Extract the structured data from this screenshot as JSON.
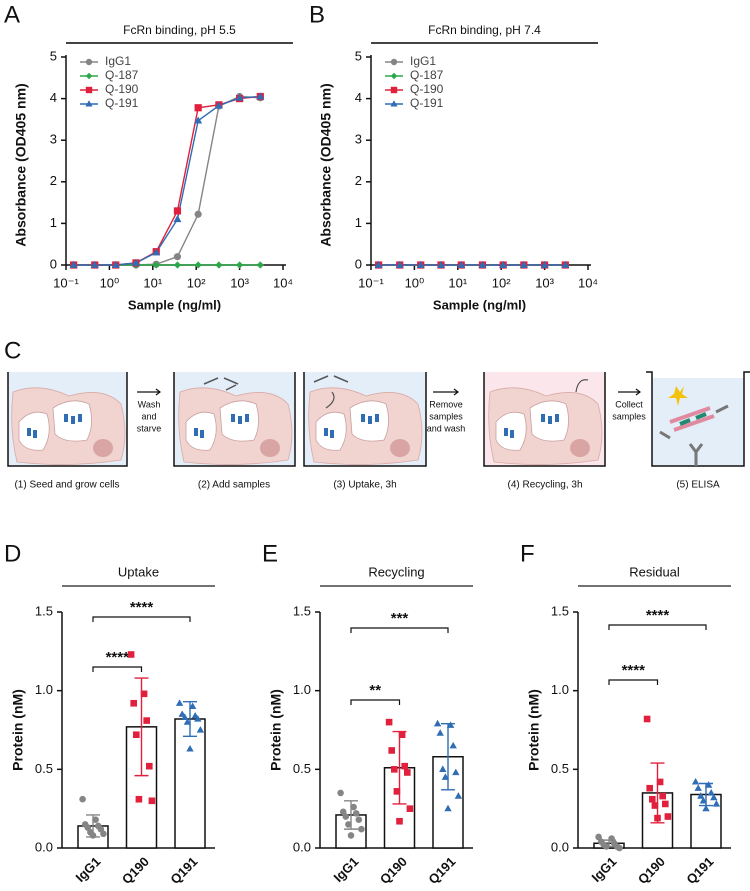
{
  "chart_data": [
    {
      "type": "line",
      "panel": "A",
      "title": "FcRn binding, pH 5.5",
      "xlabel": "Sample (ng/ml)",
      "ylabel": "Absorbance (OD405 nm)",
      "log_x": true,
      "xlim": [
        0.1,
        10000
      ],
      "xticks": [
        {
          "value": 0.1,
          "label": "10⁻¹"
        },
        {
          "value": 1,
          "label": "10⁰"
        },
        {
          "value": 10,
          "label": "10¹"
        },
        {
          "value": 100,
          "label": "10²"
        },
        {
          "value": 1000,
          "label": "10³"
        },
        {
          "value": 10000,
          "label": "10⁴"
        }
      ],
      "ylim": [
        0,
        5
      ],
      "yticks": [
        0,
        1,
        2,
        3,
        4,
        5
      ],
      "legend": "upper left",
      "x": [
        0.15,
        0.46,
        1.4,
        4.1,
        12,
        37,
        111,
        333,
        1000,
        3000
      ],
      "series": [
        {
          "name": "IgG1",
          "color": "#858585",
          "marker": "circle",
          "values": [
            0,
            0,
            0,
            0,
            0.02,
            0.2,
            1.22,
            3.82,
            4.05,
            4.02
          ]
        },
        {
          "name": "Q-187",
          "color": "#2ca84a",
          "marker": "diamond",
          "values": [
            0,
            0,
            0,
            0,
            0,
            0,
            0,
            0,
            0,
            0
          ]
        },
        {
          "name": "Q-190",
          "color": "#e0203c",
          "marker": "square",
          "values": [
            0,
            0,
            0,
            0.05,
            0.32,
            1.3,
            3.78,
            3.85,
            4.0,
            4.05
          ]
        },
        {
          "name": "Q-191",
          "color": "#2f6db5",
          "marker": "triangle",
          "values": [
            0,
            0,
            0,
            0.05,
            0.3,
            1.1,
            3.47,
            3.83,
            4.02,
            4.05
          ]
        }
      ]
    },
    {
      "type": "line",
      "panel": "B",
      "title": "FcRn binding, pH 7.4",
      "xlabel": "Sample (ng/ml)",
      "ylabel": "Absorbance (OD405 nm)",
      "log_x": true,
      "xlim": [
        0.1,
        10000
      ],
      "xticks": [
        {
          "value": 0.1,
          "label": "10⁻¹"
        },
        {
          "value": 1,
          "label": "10⁰"
        },
        {
          "value": 10,
          "label": "10¹"
        },
        {
          "value": 100,
          "label": "10²"
        },
        {
          "value": 1000,
          "label": "10³"
        },
        {
          "value": 10000,
          "label": "10⁴"
        }
      ],
      "ylim": [
        0,
        5
      ],
      "yticks": [
        0,
        1,
        2,
        3,
        4,
        5
      ],
      "legend": "upper left",
      "x": [
        0.15,
        0.46,
        1.4,
        4.1,
        12,
        37,
        111,
        333,
        1000,
        3000
      ],
      "series": [
        {
          "name": "IgG1",
          "color": "#858585",
          "marker": "circle",
          "values": [
            0,
            0,
            0,
            0,
            0,
            0,
            0,
            0,
            0,
            0
          ]
        },
        {
          "name": "Q-187",
          "color": "#2ca84a",
          "marker": "diamond",
          "values": [
            0,
            0,
            0,
            0,
            0,
            0,
            0,
            0,
            0,
            0
          ]
        },
        {
          "name": "Q-190",
          "color": "#e0203c",
          "marker": "square",
          "values": [
            0,
            0,
            0,
            0,
            0,
            0,
            0,
            0,
            0,
            0
          ]
        },
        {
          "name": "Q-191",
          "color": "#2f6db5",
          "marker": "triangle",
          "values": [
            0,
            0,
            0,
            0,
            0,
            0,
            0,
            0,
            0,
            0
          ]
        }
      ]
    },
    {
      "type": "bar",
      "panel": "D",
      "title": "Uptake",
      "ylabel": "Protein (nM)",
      "ylim": [
        0,
        1.5
      ],
      "yticks": [
        {
          "value": 0,
          "label": "0.0"
        },
        0.5,
        {
          "value": 1,
          "label": "1.0"
        },
        1.5
      ],
      "categories": [
        "IgG1",
        "Q190",
        "Q191"
      ],
      "colors": [
        "#858585",
        "#e0203c",
        "#2f6db5"
      ],
      "markers": [
        "circle",
        "square",
        "triangle"
      ],
      "values": [
        0.14,
        0.77,
        0.82
      ],
      "errors": [
        0.07,
        0.31,
        0.11
      ],
      "points": [
        [
          0.31,
          0.18,
          0.15,
          0.14,
          0.13,
          0.12,
          0.1,
          0.09,
          0.08
        ],
        [
          1.23,
          0.98,
          0.92,
          0.81,
          0.72,
          0.52,
          0.31,
          0.3
        ],
        [
          0.92,
          0.9,
          0.85,
          0.84,
          0.83,
          0.82,
          0.8,
          0.75,
          0.63
        ]
      ],
      "comparisons": [
        {
          "pair": [
            "IgG1",
            "Q190"
          ],
          "label": "****"
        },
        {
          "pair": [
            "IgG1",
            "Q191"
          ],
          "label": "****"
        }
      ]
    },
    {
      "type": "bar",
      "panel": "E",
      "title": "Recycling",
      "ylabel": "Protein (nM)",
      "ylim": [
        0,
        1.5
      ],
      "yticks": [
        {
          "value": 0,
          "label": "0.0"
        },
        0.5,
        {
          "value": 1,
          "label": "1.0"
        },
        1.5
      ],
      "categories": [
        "IgG1",
        "Q190",
        "Q191"
      ],
      "colors": [
        "#858585",
        "#e0203c",
        "#2f6db5"
      ],
      "markers": [
        "circle",
        "square",
        "triangle"
      ],
      "values": [
        0.21,
        0.51,
        0.58
      ],
      "errors": [
        0.09,
        0.23,
        0.21
      ],
      "points": [
        [
          0.35,
          0.26,
          0.23,
          0.22,
          0.2,
          0.18,
          0.15,
          0.12,
          0.08
        ],
        [
          0.8,
          0.72,
          0.62,
          0.52,
          0.5,
          0.48,
          0.36,
          0.25,
          0.17
        ],
        [
          0.79,
          0.78,
          0.73,
          0.65,
          0.5,
          0.48,
          0.45,
          0.33,
          0.25
        ]
      ],
      "comparisons": [
        {
          "pair": [
            "IgG1",
            "Q190"
          ],
          "label": "**"
        },
        {
          "pair": [
            "IgG1",
            "Q191"
          ],
          "label": "***"
        }
      ]
    },
    {
      "type": "bar",
      "panel": "F",
      "title": "Residual",
      "ylabel": "Protein (nM)",
      "ylim": [
        0,
        1.5
      ],
      "yticks": [
        {
          "value": 0,
          "label": "0.0"
        },
        0.5,
        {
          "value": 1,
          "label": "1.0"
        },
        1.5
      ],
      "categories": [
        "IgG1",
        "Q190",
        "Q191"
      ],
      "colors": [
        "#858585",
        "#e0203c",
        "#2f6db5"
      ],
      "markers": [
        "circle",
        "square",
        "triangle"
      ],
      "values": [
        0.03,
        0.35,
        0.34
      ],
      "errors": [
        0.02,
        0.19,
        0.07
      ],
      "points": [
        [
          0.07,
          0.06,
          0.04,
          0.03,
          0.02,
          0.01,
          0.01,
          0
        ],
        [
          0.82,
          0.42,
          0.38,
          0.33,
          0.31,
          0.28,
          0.27,
          0.2,
          0.19
        ],
        [
          0.42,
          0.4,
          0.38,
          0.35,
          0.33,
          0.32,
          0.3,
          0.28,
          0.25
        ]
      ],
      "comparisons": [
        {
          "pair": [
            "IgG1",
            "Q190"
          ],
          "label": "****"
        },
        {
          "pair": [
            "IgG1",
            "Q191"
          ],
          "label": "****"
        }
      ]
    }
  ],
  "diagram": {
    "label": "C",
    "steps": [
      "(1) Seed and grow cells",
      "(2) Add samples",
      "(3) Uptake, 3h",
      "(4) Recycling, 3h",
      "(5) ELISA"
    ],
    "arrows": [
      [
        "Wash",
        "and",
        "starve"
      ],
      [
        "Remove",
        "samples",
        "and wash"
      ],
      [
        "Collect",
        "samples"
      ]
    ]
  }
}
